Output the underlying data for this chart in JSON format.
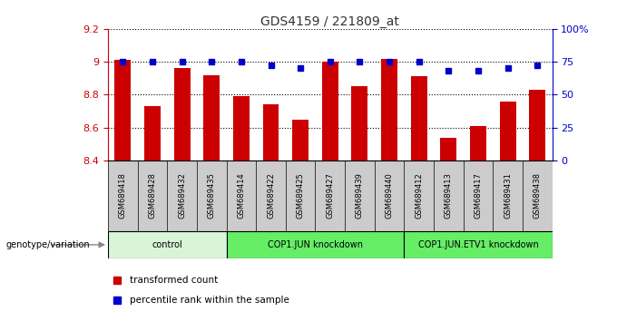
{
  "title": "GDS4159 / 221809_at",
  "samples": [
    "GSM689418",
    "GSM689428",
    "GSM689432",
    "GSM689435",
    "GSM689414",
    "GSM689422",
    "GSM689425",
    "GSM689427",
    "GSM689439",
    "GSM689440",
    "GSM689412",
    "GSM689413",
    "GSM689417",
    "GSM689431",
    "GSM689438"
  ],
  "bar_values": [
    9.01,
    8.73,
    8.96,
    8.92,
    8.79,
    8.74,
    8.65,
    9.0,
    8.85,
    9.02,
    8.91,
    8.54,
    8.61,
    8.76,
    8.83
  ],
  "percentile_values": [
    75,
    75,
    75,
    75,
    75,
    72,
    70,
    75,
    75,
    75,
    75,
    68,
    68,
    70,
    72
  ],
  "groups": [
    {
      "label": "control",
      "start": 0,
      "end": 4,
      "color": "#d8f5d8"
    },
    {
      "label": "COP1.JUN knockdown",
      "start": 4,
      "end": 10,
      "color": "#66ee66"
    },
    {
      "label": "COP1.JUN.ETV1 knockdown",
      "start": 10,
      "end": 15,
      "color": "#66ee66"
    }
  ],
  "ylim_left": [
    8.4,
    9.2
  ],
  "ylim_right": [
    0,
    100
  ],
  "yticks_left": [
    8.4,
    8.6,
    8.8,
    9.0,
    9.2
  ],
  "ytick_labels_left": [
    "8.4",
    "8.6",
    "8.8",
    "9",
    "9.2"
  ],
  "yticks_right": [
    0,
    25,
    50,
    75,
    100
  ],
  "ytick_labels_right": [
    "0",
    "25",
    "50",
    "75",
    "100%"
  ],
  "bar_color": "#cc0000",
  "dot_color": "#0000cc",
  "left_tick_color": "#cc0000",
  "right_tick_color": "#0000cc",
  "legend_items": [
    {
      "label": "transformed count",
      "color": "#cc0000"
    },
    {
      "label": "percentile rank within the sample",
      "color": "#0000cc"
    }
  ],
  "genotype_label": "genotype/variation",
  "plot_bg": "#ffffff",
  "sample_box_bg": "#cccccc",
  "group_control_color": "#d8f5d8",
  "group_cop1jun_color": "#66ee66",
  "group_cop1junetv1_color": "#66ee66"
}
